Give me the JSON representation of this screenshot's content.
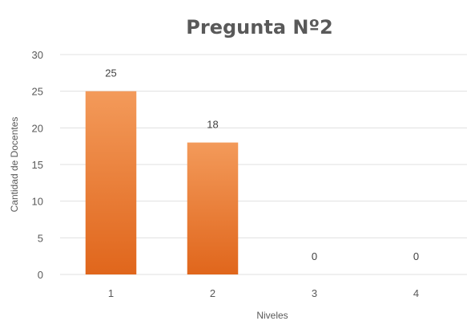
{
  "chart_data": {
    "type": "bar",
    "title": "Pregunta Nº2",
    "xlabel": "Niveles",
    "ylabel": "Cantidad de Docentes",
    "categories": [
      "1",
      "2",
      "3",
      "4"
    ],
    "values": [
      25,
      18,
      0,
      0
    ],
    "data_labels": [
      "25",
      "18",
      "0",
      "0"
    ],
    "ylim": [
      0,
      30
    ],
    "y_ticks": [
      0,
      5,
      10,
      15,
      20,
      25,
      30
    ],
    "y_tick_labels": [
      "0",
      "5",
      "10",
      "15",
      "20",
      "25",
      "30"
    ],
    "grid": true,
    "legend": "none",
    "colors": {
      "bar_top": "#f39a5a",
      "bar_bottom": "#e0661c",
      "gridline": "#e0e0e0",
      "text": "#595959"
    }
  }
}
